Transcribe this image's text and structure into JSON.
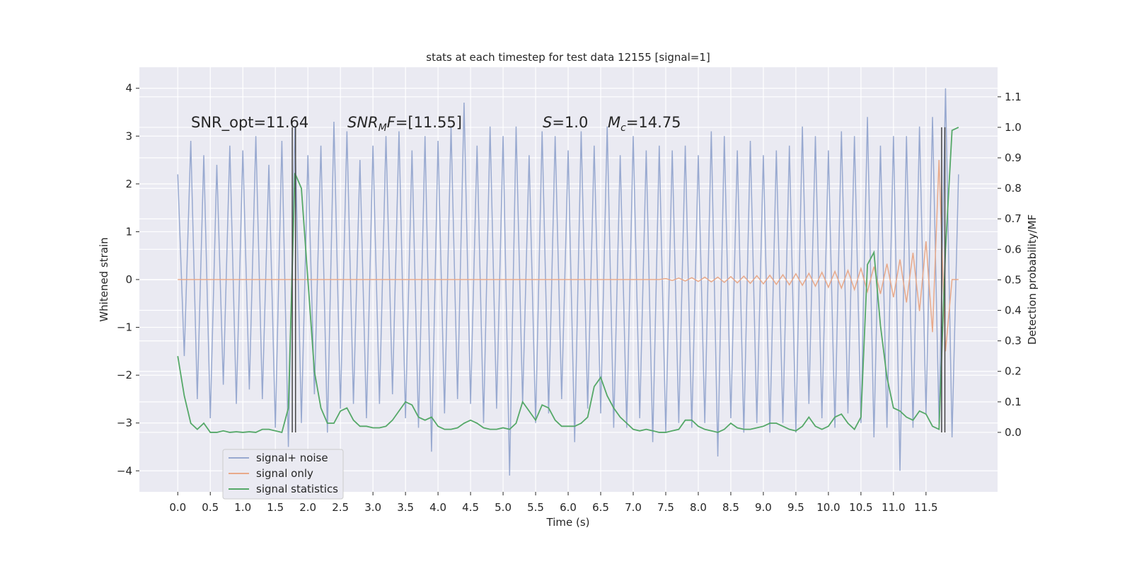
{
  "chart_data": {
    "type": "line",
    "title": "stats at each timestep for test data 12155 [signal=1]",
    "xlabel": "Time (s)",
    "ylabel": "Whitened strain",
    "y2label": "Detection probability/MF",
    "annotations": [
      [
        {
          "text": "SNR_opt=11.64"
        }
      ],
      [
        {
          "text": "SNR",
          "style": "italic"
        },
        {
          "text": "M",
          "style": "sub"
        },
        {
          "text": "F",
          "style": "italic"
        },
        {
          "text": "=[11.55]"
        }
      ],
      [
        {
          "text": "S",
          "style": "italic"
        },
        {
          "text": "=1.0"
        }
      ],
      [
        {
          "text": "M",
          "style": "italic"
        },
        {
          "text": "c",
          "style": "sub"
        },
        {
          "text": "=14.75"
        }
      ]
    ],
    "x": [
      0,
      0.1,
      0.2,
      0.3,
      0.4,
      0.5,
      0.6,
      0.7,
      0.8,
      0.9,
      1,
      1.1,
      1.2,
      1.3,
      1.4,
      1.5,
      1.6,
      1.7,
      1.8,
      1.9,
      2,
      2.1,
      2.2,
      2.3,
      2.4,
      2.5,
      2.6,
      2.7,
      2.8,
      2.9,
      3,
      3.1,
      3.2,
      3.3,
      3.4,
      3.5,
      3.6,
      3.7,
      3.8,
      3.9,
      4,
      4.1,
      4.2,
      4.3,
      4.4,
      4.5,
      4.6,
      4.7,
      4.8,
      4.9,
      5,
      5.1,
      5.2,
      5.3,
      5.4,
      5.5,
      5.6,
      5.7,
      5.8,
      5.9,
      6,
      6.1,
      6.2,
      6.3,
      6.4,
      6.5,
      6.6,
      6.7,
      6.8,
      6.9,
      7,
      7.1,
      7.2,
      7.3,
      7.4,
      7.5,
      7.6,
      7.7,
      7.8,
      7.9,
      8,
      8.1,
      8.2,
      8.3,
      8.4,
      8.5,
      8.6,
      8.7,
      8.8,
      8.9,
      9,
      9.1,
      9.2,
      9.3,
      9.4,
      9.5,
      9.6,
      9.7,
      9.8,
      9.9,
      10,
      10.1,
      10.2,
      10.3,
      10.4,
      10.5,
      10.6,
      10.7,
      10.8,
      10.9,
      11,
      11.1,
      11.2,
      11.3,
      11.4,
      11.5,
      11.6,
      11.7,
      11.8,
      11.9,
      12
    ],
    "series": [
      {
        "name": "signal+ noise",
        "color": "#98a9d0",
        "values": [
          2.2,
          -1.6,
          2.9,
          -2.5,
          2.6,
          -2.9,
          2.4,
          -2.2,
          2.8,
          -2.6,
          2.7,
          -2.3,
          3.0,
          -2.5,
          2.4,
          -3.1,
          2.9,
          -3.5,
          3.2,
          -3.0,
          2.6,
          -2.4,
          2.8,
          -3.2,
          3.3,
          -2.7,
          3.1,
          -2.6,
          2.5,
          -2.9,
          2.8,
          -2.6,
          3.0,
          -2.4,
          3.1,
          -2.9,
          2.7,
          -3.1,
          3.0,
          -3.6,
          2.9,
          -2.8,
          3.2,
          -2.5,
          3.7,
          -2.6,
          2.8,
          -3.0,
          3.2,
          -2.7,
          3.0,
          -4.1,
          3.2,
          -2.6,
          2.6,
          -3.0,
          3.1,
          -2.8,
          3.0,
          -2.5,
          2.7,
          -3.4,
          3.1,
          -2.7,
          2.8,
          -2.8,
          3.2,
          -3.1,
          2.6,
          -3.1,
          3.0,
          -2.9,
          2.7,
          -3.4,
          2.8,
          -3.2,
          2.7,
          -3.0,
          2.8,
          -3.1,
          2.6,
          -3.0,
          3.1,
          -3.7,
          3.0,
          -2.9,
          2.7,
          -3.2,
          2.9,
          -3.0,
          2.6,
          -3.2,
          2.7,
          -3.0,
          2.8,
          -3.2,
          3.2,
          -2.6,
          3.0,
          -2.9,
          2.7,
          -3.1,
          3.1,
          -2.8,
          3.0,
          -3.0,
          3.4,
          -3.3,
          2.8,
          -3.1,
          3.0,
          -4.0,
          3.0,
          -3.1,
          3.2,
          -2.8,
          3.4,
          -3.0,
          4.0,
          -3.3,
          2.2
        ]
      },
      {
        "name": "signal only",
        "color": "#e8a98a",
        "values": [
          0,
          0,
          0,
          0,
          0,
          0,
          0,
          0,
          0,
          0,
          0,
          0,
          0,
          0,
          0,
          0,
          0,
          0,
          0,
          0,
          0,
          0,
          0,
          0,
          0,
          0,
          0,
          0,
          0,
          0,
          0,
          0,
          0,
          0,
          0,
          0,
          0,
          0,
          0,
          0,
          0,
          0,
          0,
          0,
          0,
          0,
          0,
          0,
          0,
          0,
          0,
          0,
          0,
          0,
          0,
          0,
          0,
          0,
          0,
          0,
          0,
          0,
          0,
          0,
          0,
          0,
          0,
          0,
          0,
          0,
          0,
          0,
          0,
          0,
          0,
          0.02,
          -0.02,
          0.03,
          -0.03,
          0.04,
          -0.04,
          0.05,
          -0.05,
          0.05,
          -0.06,
          0.06,
          -0.07,
          0.07,
          -0.08,
          0.08,
          -0.09,
          0.09,
          -0.1,
          0.1,
          -0.11,
          0.12,
          -0.12,
          0.13,
          -0.14,
          0.15,
          -0.16,
          0.17,
          -0.18,
          0.19,
          -0.21,
          0.23,
          -0.25,
          0.27,
          -0.3,
          0.33,
          -0.37,
          0.42,
          -0.48,
          0.56,
          -0.66,
          0.8,
          -1.1,
          2.5,
          -1.5,
          0,
          0
        ]
      },
      {
        "name": "signal statistics",
        "color": "#55a868",
        "axis": "y2",
        "values": [
          0.25,
          0.12,
          0.03,
          0.01,
          0.03,
          0.0,
          0.0,
          0.005,
          0.0,
          0.002,
          0.0,
          0.002,
          0.0,
          0.01,
          0.01,
          0.005,
          0.0,
          0.08,
          0.85,
          0.8,
          0.5,
          0.2,
          0.08,
          0.03,
          0.03,
          0.07,
          0.08,
          0.04,
          0.02,
          0.02,
          0.015,
          0.015,
          0.02,
          0.04,
          0.07,
          0.1,
          0.09,
          0.05,
          0.04,
          0.05,
          0.02,
          0.01,
          0.01,
          0.015,
          0.03,
          0.04,
          0.03,
          0.015,
          0.01,
          0.01,
          0.015,
          0.01,
          0.03,
          0.1,
          0.07,
          0.04,
          0.09,
          0.08,
          0.04,
          0.02,
          0.02,
          0.02,
          0.03,
          0.05,
          0.15,
          0.18,
          0.12,
          0.08,
          0.05,
          0.03,
          0.01,
          0.005,
          0.01,
          0.005,
          0.0,
          0.0,
          0.005,
          0.01,
          0.04,
          0.04,
          0.02,
          0.01,
          0.005,
          0.0,
          0.01,
          0.03,
          0.015,
          0.01,
          0.01,
          0.015,
          0.02,
          0.03,
          0.03,
          0.02,
          0.01,
          0.005,
          0.02,
          0.05,
          0.02,
          0.01,
          0.02,
          0.05,
          0.06,
          0.03,
          0.01,
          0.05,
          0.55,
          0.59,
          0.35,
          0.18,
          0.08,
          0.07,
          0.05,
          0.04,
          0.07,
          0.06,
          0.02,
          0.01,
          0.6,
          0.99,
          1.0
        ]
      }
    ],
    "vlines": [
      1.76,
      1.81,
      11.74,
      11.79
    ],
    "vline_span": [
      0,
      1
    ],
    "vline_color": "#444444",
    "xlim": [
      -0.59,
      12.6
    ],
    "xticks": [
      {
        "value": 0,
        "label": "0.0"
      },
      0.5,
      {
        "value": 1,
        "label": "1.0"
      },
      1.5,
      {
        "value": 2,
        "label": "2.0"
      },
      2.5,
      {
        "value": 3,
        "label": "3.0"
      },
      3.5,
      {
        "value": 4,
        "label": "4.0"
      },
      4.5,
      {
        "value": 5,
        "label": "5.0"
      },
      5.5,
      {
        "value": 6,
        "label": "6.0"
      },
      6.5,
      {
        "value": 7,
        "label": "7.0"
      },
      7.5,
      {
        "value": 8,
        "label": "8.0"
      },
      8.5,
      {
        "value": 9,
        "label": "9.0"
      },
      9.5,
      {
        "value": 10,
        "label": "10.0"
      },
      10.5,
      {
        "value": 11,
        "label": "11.0"
      },
      11.5
    ],
    "ylim": [
      -4.44,
      4.44
    ],
    "yticks": [
      {
        "value": -4,
        "label": "−4"
      },
      {
        "value": -3,
        "label": "−3"
      },
      {
        "value": -2,
        "label": "−2"
      },
      {
        "value": -1,
        "label": "−1"
      },
      0,
      1,
      2,
      3,
      4
    ],
    "y2lim": [
      -0.195,
      1.197
    ],
    "y2ticks": [
      {
        "value": 0,
        "label": "0.0"
      },
      0.1,
      0.2,
      0.3,
      0.4,
      0.5,
      0.6,
      0.7,
      0.8,
      0.9,
      {
        "value": 1,
        "label": "1.0"
      },
      1.1
    ],
    "grid": true,
    "legend": "lower left"
  }
}
